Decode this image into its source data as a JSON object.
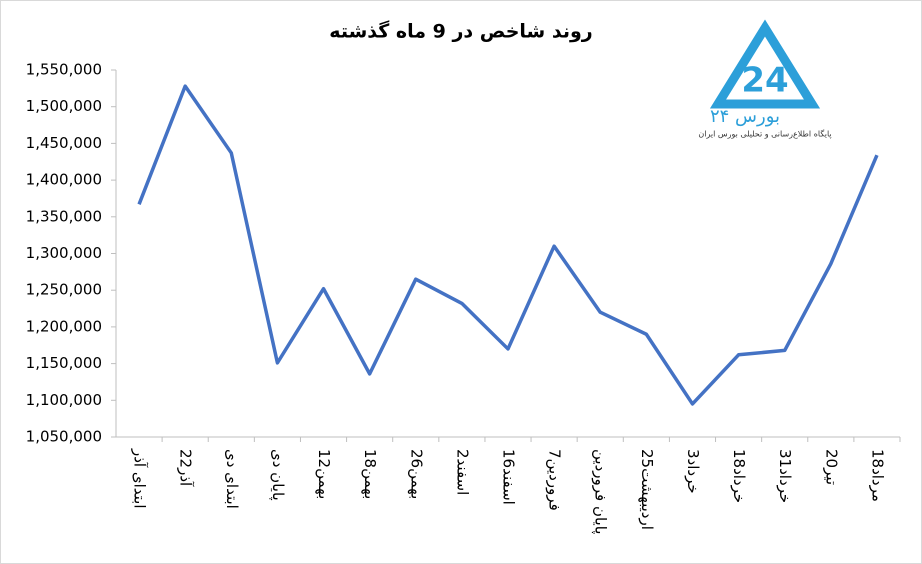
{
  "chart_data": {
    "type": "line",
    "title": "روند شاخص در 9 ماه گذشته",
    "categories": [
      "ابتدای آذر",
      "22آذر",
      "ابتدای دی",
      "پایان دی",
      "12بهمن",
      "18بهمن",
      "26بهمن",
      "2اسفند",
      "16اسفند",
      "7فروردین",
      "پایان فروردین",
      "25اردیبهشت",
      "3خرداد",
      "18خرداد",
      "31خرداد",
      "20تیر",
      "18مرداد"
    ],
    "series": [
      {
        "color": "#4472c4",
        "values": [
          1367000,
          1528000,
          1437000,
          1151000,
          1252000,
          1136000,
          1265000,
          1232000,
          1170000,
          1310000,
          1220000,
          1190000,
          1095000,
          1162000,
          1168000,
          1286000,
          1434000
        ]
      }
    ],
    "ylim": [
      1050000,
      1550000
    ],
    "yticks": [
      {
        "value": 1050000,
        "label": "1,050,000"
      },
      {
        "value": 1100000,
        "label": "1,100,000"
      },
      {
        "value": 1150000,
        "label": "1,150,000"
      },
      {
        "value": 1200000,
        "label": "1,200,000"
      },
      {
        "value": 1250000,
        "label": "1,250,000"
      },
      {
        "value": 1300000,
        "label": "1,300,000"
      },
      {
        "value": 1350000,
        "label": "1,350,000"
      },
      {
        "value": 1400000,
        "label": "1,400,000"
      },
      {
        "value": 1450000,
        "label": "1,450,000"
      },
      {
        "value": 1500000,
        "label": "1,500,000"
      },
      {
        "value": 1550000,
        "label": "1,550,000"
      }
    ],
    "grid": false
  },
  "logo": {
    "name": "بورس ۲۴",
    "tagline": "پایگاه اطلاع‌رسانی و تحلیلی بورس ایران"
  }
}
